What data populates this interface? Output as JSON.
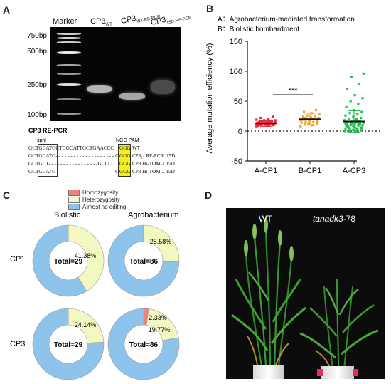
{
  "panel_labels": {
    "a": "A",
    "b": "B",
    "c": "C",
    "d": "D"
  },
  "panel_a": {
    "lanes": {
      "marker": "Marker",
      "cp3_wt": {
        "base": "CP3",
        "sub": "WT"
      },
      "cp3_wt_re": {
        "base": "CP3",
        "sub": "WT-RE-PCR"
      },
      "cp3_15d": {
        "base": "CP3",
        "sub": "15D-RE-PCR"
      }
    },
    "mw": [
      "750bp",
      "500bp",
      "250bp",
      "100bp"
    ],
    "re_title": "CP3 RE-PCR",
    "sphl_label": "sphl",
    "pam_label": "NGG PAM",
    "sequences": [
      {
        "pre": "GCT",
        "box": "GCATGC",
        "mid": "TGGCATTGCTGAACCC",
        "pam": "GGG",
        "name": "WT"
      },
      {
        "pre": "GCT",
        "box": "GCATG",
        "mid": "- - - - - - - - - - - - - - - - - - - - C",
        "pam": "GGG",
        "name": "CP3₁₅ RE-PCR  15D"
      },
      {
        "pre": "GCT",
        "box": "GCT",
        "mid": "- - - - - - - - - - - - - - - - -GCCC",
        "pam": "GGG",
        "name": "CP3 Hi-TOM-1 15D"
      },
      {
        "pre": "GCT",
        "box": "GCATG",
        "mid": "- - - - - - - - - - - - - - - - - - - - C",
        "pam": "GGG",
        "name": "CP3 Hi-TOM-2 15D"
      }
    ]
  },
  "panel_b": {
    "legend": [
      "A：Agrobacterium-mediated transformation",
      "B：Biolistic bombardment"
    ],
    "significance": "***",
    "chart_data": {
      "type": "scatter",
      "ylabel": "Average mutation efficiency (%)",
      "ylim": [
        -50,
        150
      ],
      "yticks": [
        -50,
        0,
        50,
        100,
        150
      ],
      "categories": [
        "A-CP1",
        "B-CP1",
        "A-CP3"
      ],
      "colors": [
        "#e8283c",
        "#f0a030",
        "#22c050"
      ],
      "means": [
        13,
        20,
        16
      ],
      "sd": [
        5,
        10,
        18
      ],
      "points": [
        [
          8,
          9,
          10,
          10,
          11,
          11,
          12,
          12,
          12,
          13,
          13,
          13,
          14,
          14,
          14,
          15,
          15,
          15,
          16,
          16,
          17,
          17,
          18,
          19,
          20,
          22,
          24,
          12,
          13,
          11,
          14,
          10,
          15,
          9,
          16,
          12,
          13,
          14,
          11,
          15,
          17,
          18,
          19,
          12,
          13,
          14,
          10,
          11,
          16,
          13,
          12,
          14,
          15,
          13,
          11,
          12,
          14,
          16,
          13,
          12
        ],
        [
          8,
          10,
          11,
          12,
          13,
          14,
          15,
          16,
          17,
          18,
          19,
          20,
          21,
          22,
          23,
          24,
          25,
          26,
          28,
          30,
          32,
          35,
          12,
          18,
          20,
          22,
          15,
          17,
          19,
          21
        ],
        [
          0,
          0,
          0,
          1,
          2,
          3,
          4,
          5,
          6,
          7,
          8,
          9,
          10,
          10,
          11,
          12,
          12,
          13,
          14,
          15,
          15,
          16,
          17,
          18,
          19,
          20,
          22,
          24,
          26,
          28,
          30,
          32,
          35,
          40,
          45,
          50,
          55,
          60,
          70,
          78,
          90,
          96,
          5,
          8,
          11,
          14,
          18,
          20,
          3,
          6,
          9,
          13,
          16,
          2,
          4,
          7,
          10,
          12
        ]
      ]
    }
  },
  "panel_c": {
    "legend": [
      {
        "label": "Homozygosity",
        "color": "#f08080"
      },
      {
        "label": "Heterozygosity",
        "color": "#f2f8c0"
      },
      {
        "label": "Almost no editing",
        "color": "#8ec4ec"
      }
    ],
    "columns": [
      "Biolistic",
      "Agrobacterium"
    ],
    "rows": [
      "CP1",
      "CP3"
    ],
    "chart_data": [
      {
        "type": "pie",
        "row": "CP1",
        "column": "Biolistic",
        "total": "Total=29",
        "values": [
          0,
          41.38,
          58.62
        ],
        "labels": [
          "",
          "41.38%",
          ""
        ]
      },
      {
        "type": "pie",
        "row": "CP1",
        "column": "Agrobacterium",
        "total": "Total=86",
        "values": [
          0,
          25.58,
          74.42
        ],
        "labels": [
          "",
          "25.58%",
          ""
        ]
      },
      {
        "type": "pie",
        "row": "CP3",
        "column": "Biolistic",
        "total": "Total=29",
        "values": [
          0,
          24.14,
          75.86
        ],
        "labels": [
          "",
          "24.14%",
          ""
        ]
      },
      {
        "type": "pie",
        "row": "CP3",
        "column": "Agrobacterium",
        "total": "Total=86",
        "values": [
          2.33,
          19.77,
          77.9
        ],
        "labels": [
          "2.33%",
          "19.77%",
          ""
        ]
      }
    ]
  },
  "panel_d": {
    "wt_label": "WT",
    "mutant_label": "tanadk3",
    "mutant_suffix": "-78"
  }
}
